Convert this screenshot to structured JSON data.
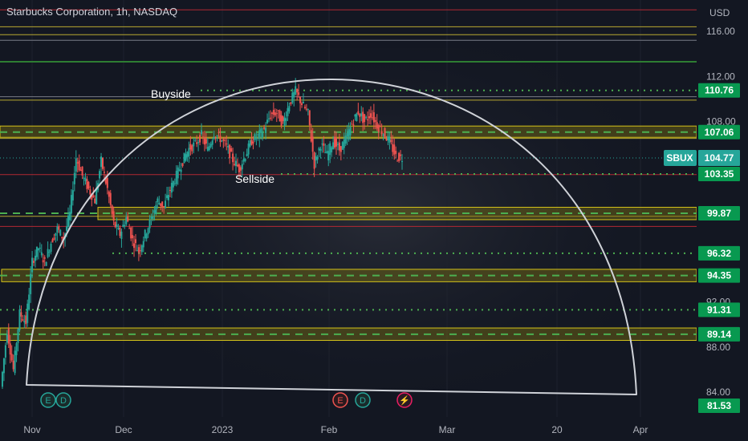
{
  "header": {
    "title": "Starbucks Corporation, 1h, NASDAQ"
  },
  "chart_data": {
    "type": "candlestick",
    "symbol": "SBUX",
    "currency": "USD",
    "ylim": [
      82.5,
      118.5
    ],
    "y_ticks": [
      "116.00",
      "112.00",
      "108.00",
      "92.00",
      "88.00",
      "84.00"
    ],
    "x_ticks": [
      "Nov",
      "Dec",
      "2023",
      "Feb",
      "Mar",
      "20",
      "Apr"
    ],
    "current_price": "104.77",
    "price_labels": [
      "110.76",
      "107.06",
      "103.35",
      "99.87",
      "96.32",
      "94.35",
      "91.31",
      "89.14",
      "81.53"
    ],
    "annotations": [
      "Buyside",
      "Sellside"
    ],
    "zones": [
      {
        "low": 106.6,
        "high": 107.6
      },
      {
        "low": 99.3,
        "high": 100.4
      },
      {
        "low": 93.8,
        "high": 94.9
      },
      {
        "low": 88.6,
        "high": 89.7
      }
    ],
    "dashed_levels": [
      107.06,
      99.87,
      94.35,
      89.14
    ],
    "dotted_levels": [
      110.76,
      103.35,
      96.32,
      91.31
    ],
    "red_levels": [
      117.9,
      103.3,
      98.7
    ],
    "yellow_levels": [
      116.4,
      115.7,
      109.9,
      106.5,
      99.6
    ],
    "green_levels": [
      113.3
    ],
    "white_levels": [
      115.2,
      110.2
    ],
    "events": [
      {
        "x_label": "Nov",
        "letter": "E",
        "kind": "earnings"
      },
      {
        "x_label": "Nov",
        "letter": "D",
        "kind": "dividend"
      },
      {
        "x_label": "Feb",
        "letter": "E",
        "kind": "earnings"
      },
      {
        "x_label": "Feb",
        "letter": "D",
        "kind": "dividend"
      },
      {
        "x_label": "Feb",
        "letter": "⚡",
        "kind": "split"
      }
    ],
    "colors": {
      "up": "#26a69a",
      "down": "#ef5350",
      "zone": "#c8b400",
      "dashed": "#4caf50",
      "dotted": "#4caf50",
      "badge_green": "#089950",
      "badge_teal": "#26a69a"
    },
    "candles_path": [
      [
        84.5,
        "Nov"
      ],
      [
        89.5,
        null
      ],
      [
        86.0,
        null
      ],
      [
        91.0,
        null
      ],
      [
        90.2,
        null
      ],
      [
        95.6,
        null
      ],
      [
        96.8,
        null
      ],
      [
        95.5,
        null
      ],
      [
        97.3,
        null
      ],
      [
        98.5,
        null
      ],
      [
        97.6,
        null
      ],
      [
        99.8,
        null
      ],
      [
        104.8,
        "Dec"
      ],
      [
        103.2,
        null
      ],
      [
        102.0,
        null
      ],
      [
        101.0,
        null
      ],
      [
        104.5,
        null
      ],
      [
        102.0,
        null
      ],
      [
        99.0,
        null
      ],
      [
        98.0,
        null
      ],
      [
        99.5,
        null
      ],
      [
        97.5,
        null
      ],
      [
        96.5,
        null
      ],
      [
        98.0,
        null
      ],
      [
        99.4,
        null
      ],
      [
        101.0,
        null
      ],
      [
        100.4,
        null
      ],
      [
        102.0,
        null
      ],
      [
        103.2,
        "2023"
      ],
      [
        104.5,
        null
      ],
      [
        105.6,
        null
      ],
      [
        106.0,
        null
      ],
      [
        106.8,
        null
      ],
      [
        105.5,
        null
      ],
      [
        107.0,
        null
      ],
      [
        106.5,
        null
      ],
      [
        105.8,
        null
      ],
      [
        104.6,
        null
      ],
      [
        103.8,
        null
      ],
      [
        105.0,
        null
      ],
      [
        106.3,
        null
      ],
      [
        106.7,
        null
      ],
      [
        107.3,
        null
      ],
      [
        108.6,
        null
      ],
      [
        108.8,
        null
      ],
      [
        107.8,
        null
      ],
      [
        109.6,
        null
      ],
      [
        110.7,
        "Feb"
      ],
      [
        109.6,
        null
      ],
      [
        108.7,
        null
      ],
      [
        104.2,
        null
      ],
      [
        106.0,
        null
      ],
      [
        105.0,
        null
      ],
      [
        106.3,
        null
      ],
      [
        105.5,
        null
      ],
      [
        106.4,
        null
      ],
      [
        107.8,
        null
      ],
      [
        108.9,
        null
      ],
      [
        108.0,
        null
      ],
      [
        108.7,
        null
      ],
      [
        107.7,
        null
      ],
      [
        107.0,
        null
      ],
      [
        106.2,
        null
      ],
      [
        104.9,
        null
      ],
      [
        104.77,
        null
      ]
    ]
  }
}
